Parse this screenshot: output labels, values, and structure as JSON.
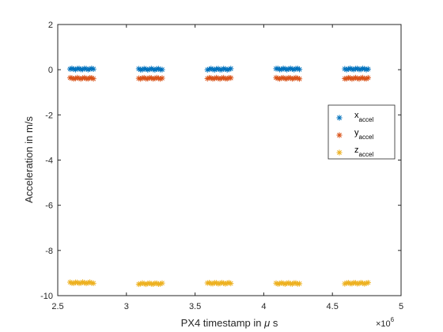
{
  "chart_data": {
    "type": "scatter",
    "xlabel_main": "PX4 timestamp in ",
    "xlabel_mu": "μ",
    "xlabel_unit": " s",
    "ylabel": "Acceleration in m/s",
    "x_exponent_base": "×10",
    "x_exponent_power": "6",
    "xlim": [
      2.5,
      5
    ],
    "ylim": [
      -10,
      2
    ],
    "x_ticks": [
      "2.5",
      "3",
      "3.5",
      "4",
      "4.5",
      "5"
    ],
    "y_ticks": [
      "2",
      "0",
      "-2",
      "-4",
      "-6",
      "-8",
      "-10"
    ],
    "grid": false,
    "legend_position": "right",
    "marker": "*",
    "clusters": [
      {
        "x_start": 2.59,
        "x_end": 2.76
      },
      {
        "x_start": 3.09,
        "x_end": 3.26
      },
      {
        "x_start": 3.59,
        "x_end": 3.76
      },
      {
        "x_start": 4.09,
        "x_end": 4.26
      },
      {
        "x_start": 4.59,
        "x_end": 4.76
      }
    ],
    "points_per_cluster": 14,
    "series": [
      {
        "name": "x",
        "name_sub": "accel",
        "color": "#0072BD",
        "cluster_values": [
          0.03,
          0.02,
          0.02,
          0.03,
          0.03
        ]
      },
      {
        "name": "y",
        "name_sub": "accel",
        "color": "#D95319",
        "cluster_values": [
          -0.38,
          -0.38,
          -0.38,
          -0.38,
          -0.38
        ]
      },
      {
        "name": "z",
        "name_sub": "accel",
        "color": "#EDB120",
        "cluster_values": [
          -9.43,
          -9.47,
          -9.45,
          -9.46,
          -9.45
        ]
      }
    ]
  }
}
